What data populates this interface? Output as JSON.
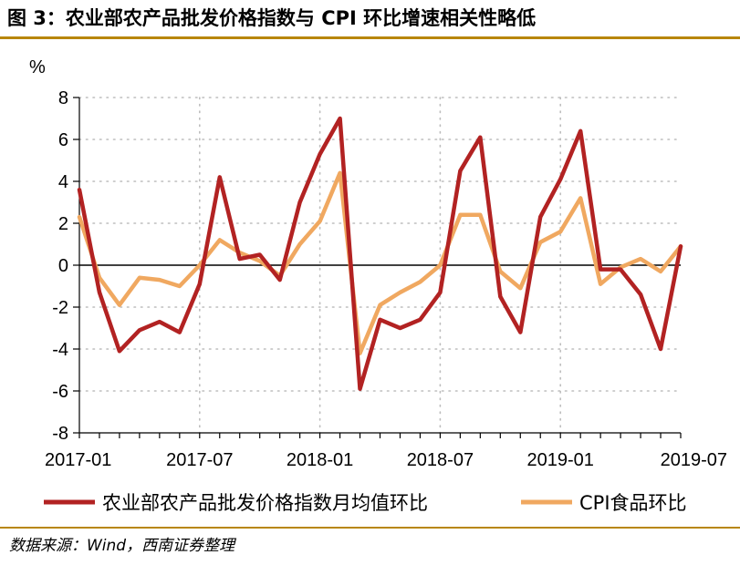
{
  "header": {
    "title": "图 3：农业部农产品批发价格指数与 CPI 环比增速相关性略低"
  },
  "footer": {
    "source": "数据来源：Wind，西南证券整理"
  },
  "chart_data": {
    "type": "line",
    "ylabel": "%",
    "ylim": [
      -8,
      8
    ],
    "yticks": [
      "8",
      "6",
      "4",
      "2",
      "0",
      "-2",
      "-4",
      "-6",
      "-8"
    ],
    "xtick_labels": [
      "2017-01",
      "2017-07",
      "2018-01",
      "2018-07",
      "2019-01",
      "2019-07"
    ],
    "x": [
      "2017-01",
      "2017-02",
      "2017-03",
      "2017-04",
      "2017-05",
      "2017-06",
      "2017-07",
      "2017-08",
      "2017-09",
      "2017-10",
      "2017-11",
      "2017-12",
      "2018-01",
      "2018-02",
      "2018-03",
      "2018-04",
      "2018-05",
      "2018-06",
      "2018-07",
      "2018-08",
      "2018-09",
      "2018-10",
      "2018-11",
      "2018-12",
      "2019-01",
      "2019-02",
      "2019-03",
      "2019-04",
      "2019-05",
      "2019-06",
      "2019-07"
    ],
    "grid": true,
    "legend_position": "bottom",
    "series": [
      {
        "name": "农业部农产品批发价格指数月均值环比",
        "color": "#b22222",
        "values": [
          3.6,
          -1.3,
          -4.1,
          -3.1,
          -2.7,
          -3.2,
          -0.9,
          4.2,
          0.3,
          0.5,
          -0.7,
          3.0,
          5.3,
          7.0,
          -5.9,
          -2.6,
          -3.0,
          -2.6,
          -1.3,
          4.5,
          6.1,
          -1.5,
          -3.2,
          2.3,
          4.1,
          6.4,
          -0.2,
          -0.2,
          -1.4,
          -4.0,
          0.9
        ]
      },
      {
        "name": "CPI食品环比",
        "color": "#f0a860",
        "values": [
          2.3,
          -0.6,
          -1.9,
          -0.6,
          -0.7,
          -1.0,
          0.0,
          1.2,
          0.6,
          0.2,
          -0.5,
          1.0,
          2.1,
          4.4,
          -4.2,
          -1.9,
          -1.3,
          -0.8,
          0.0,
          2.4,
          2.4,
          -0.3,
          -1.1,
          1.1,
          1.6,
          3.2,
          -0.9,
          -0.1,
          0.3,
          -0.3,
          0.9
        ]
      }
    ]
  }
}
